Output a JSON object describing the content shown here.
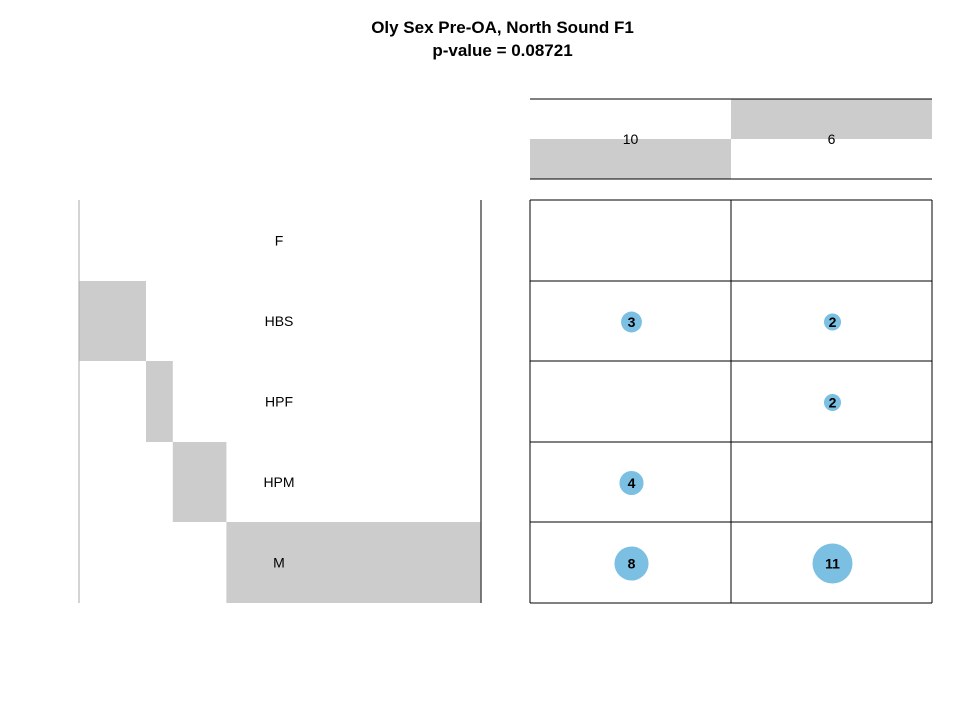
{
  "title": "Oly Sex Pre-OA, North Sound F1",
  "subtitle": "p-value = 0.08721",
  "chart_data": {
    "type": "balloon",
    "title": "Oly Sex Pre-OA, North Sound F1",
    "subtitle": "p-value = 0.08721",
    "rows": [
      "F",
      "HBS",
      "HPF",
      "HPM",
      "M"
    ],
    "row_totals": [
      0,
      5,
      2,
      4,
      19
    ],
    "columns": [
      {
        "label": "10",
        "total": 15
      },
      {
        "label": "6",
        "total": 15
      }
    ],
    "counts": [
      [
        0,
        0
      ],
      [
        3,
        2
      ],
      [
        0,
        2
      ],
      [
        4,
        0
      ],
      [
        8,
        11
      ]
    ],
    "colors": {
      "balloon": "#7bbfe3",
      "bar": "#cccccc",
      "line": "#000000"
    }
  }
}
